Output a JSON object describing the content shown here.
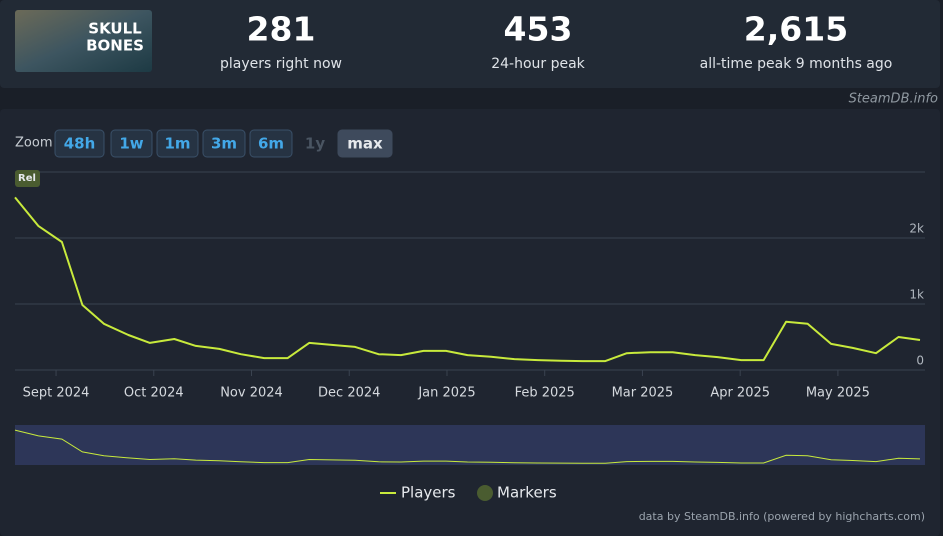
{
  "header": {
    "logo": [
      "SKULL",
      "BONES"
    ],
    "stats": [
      {
        "value": "281",
        "label": "players right now"
      },
      {
        "value": "453",
        "label": "24-hour peak"
      },
      {
        "value": "2,615",
        "label": "all-time peak 9 months ago"
      }
    ],
    "source": "SteamDB.info"
  },
  "zoom": {
    "label": "Zoom",
    "buttons": [
      "48h",
      "1w",
      "1m",
      "3m",
      "6m",
      "1y",
      "max"
    ],
    "disabled": "1y",
    "selected": "max"
  },
  "chart_data": {
    "type": "line",
    "x": [
      -0.42,
      -0.18,
      0.06,
      0.27,
      0.49,
      0.74,
      0.96,
      1.21,
      1.43,
      1.67,
      1.89,
      2.13,
      2.37,
      2.59,
      2.82,
      3.06,
      3.3,
      3.53,
      3.76,
      3.99,
      4.21,
      4.45,
      4.69,
      4.93,
      5.17,
      5.39,
      5.62,
      5.84,
      6.08,
      6.31,
      6.54,
      6.77,
      7.01,
      7.24,
      7.47,
      7.69,
      7.93,
      8.15,
      8.39,
      8.62,
      8.84
    ],
    "series": [
      {
        "name": "Players",
        "color": "#c8ea3c",
        "values": [
          2615,
          2180,
          1940,
          985,
          700,
          530,
          410,
          470,
          365,
          320,
          240,
          180,
          180,
          410,
          380,
          350,
          240,
          225,
          290,
          290,
          225,
          200,
          165,
          150,
          140,
          135,
          135,
          255,
          270,
          270,
          225,
          195,
          150,
          150,
          730,
          700,
          395,
          335,
          255,
          500,
          455
        ]
      }
    ],
    "markers": {
      "name": "Markers",
      "color": "#4a5c30",
      "labels": [
        "Rel"
      ]
    },
    "xlim": [
      -0.42,
      8.84
    ],
    "xticks": [
      {
        "value": 0,
        "label": "Sept 2024"
      },
      {
        "value": 1,
        "label": "Oct 2024"
      },
      {
        "value": 2,
        "label": "Nov 2024"
      },
      {
        "value": 3,
        "label": "Dec 2024"
      },
      {
        "value": 4,
        "label": "Jan 2025"
      },
      {
        "value": 5,
        "label": "Feb 2025"
      },
      {
        "value": 6,
        "label": "Mar 2025"
      },
      {
        "value": 7,
        "label": "Apr 2025"
      },
      {
        "value": 8,
        "label": "May 2025"
      }
    ],
    "ylim": [
      0,
      3000
    ],
    "yticks": [
      0,
      {
        "value": 1000,
        "label": "1k"
      },
      {
        "value": 2000,
        "label": "2k"
      }
    ],
    "grid": true,
    "credits": "data by SteamDB.info (powered by highcharts.com)"
  }
}
